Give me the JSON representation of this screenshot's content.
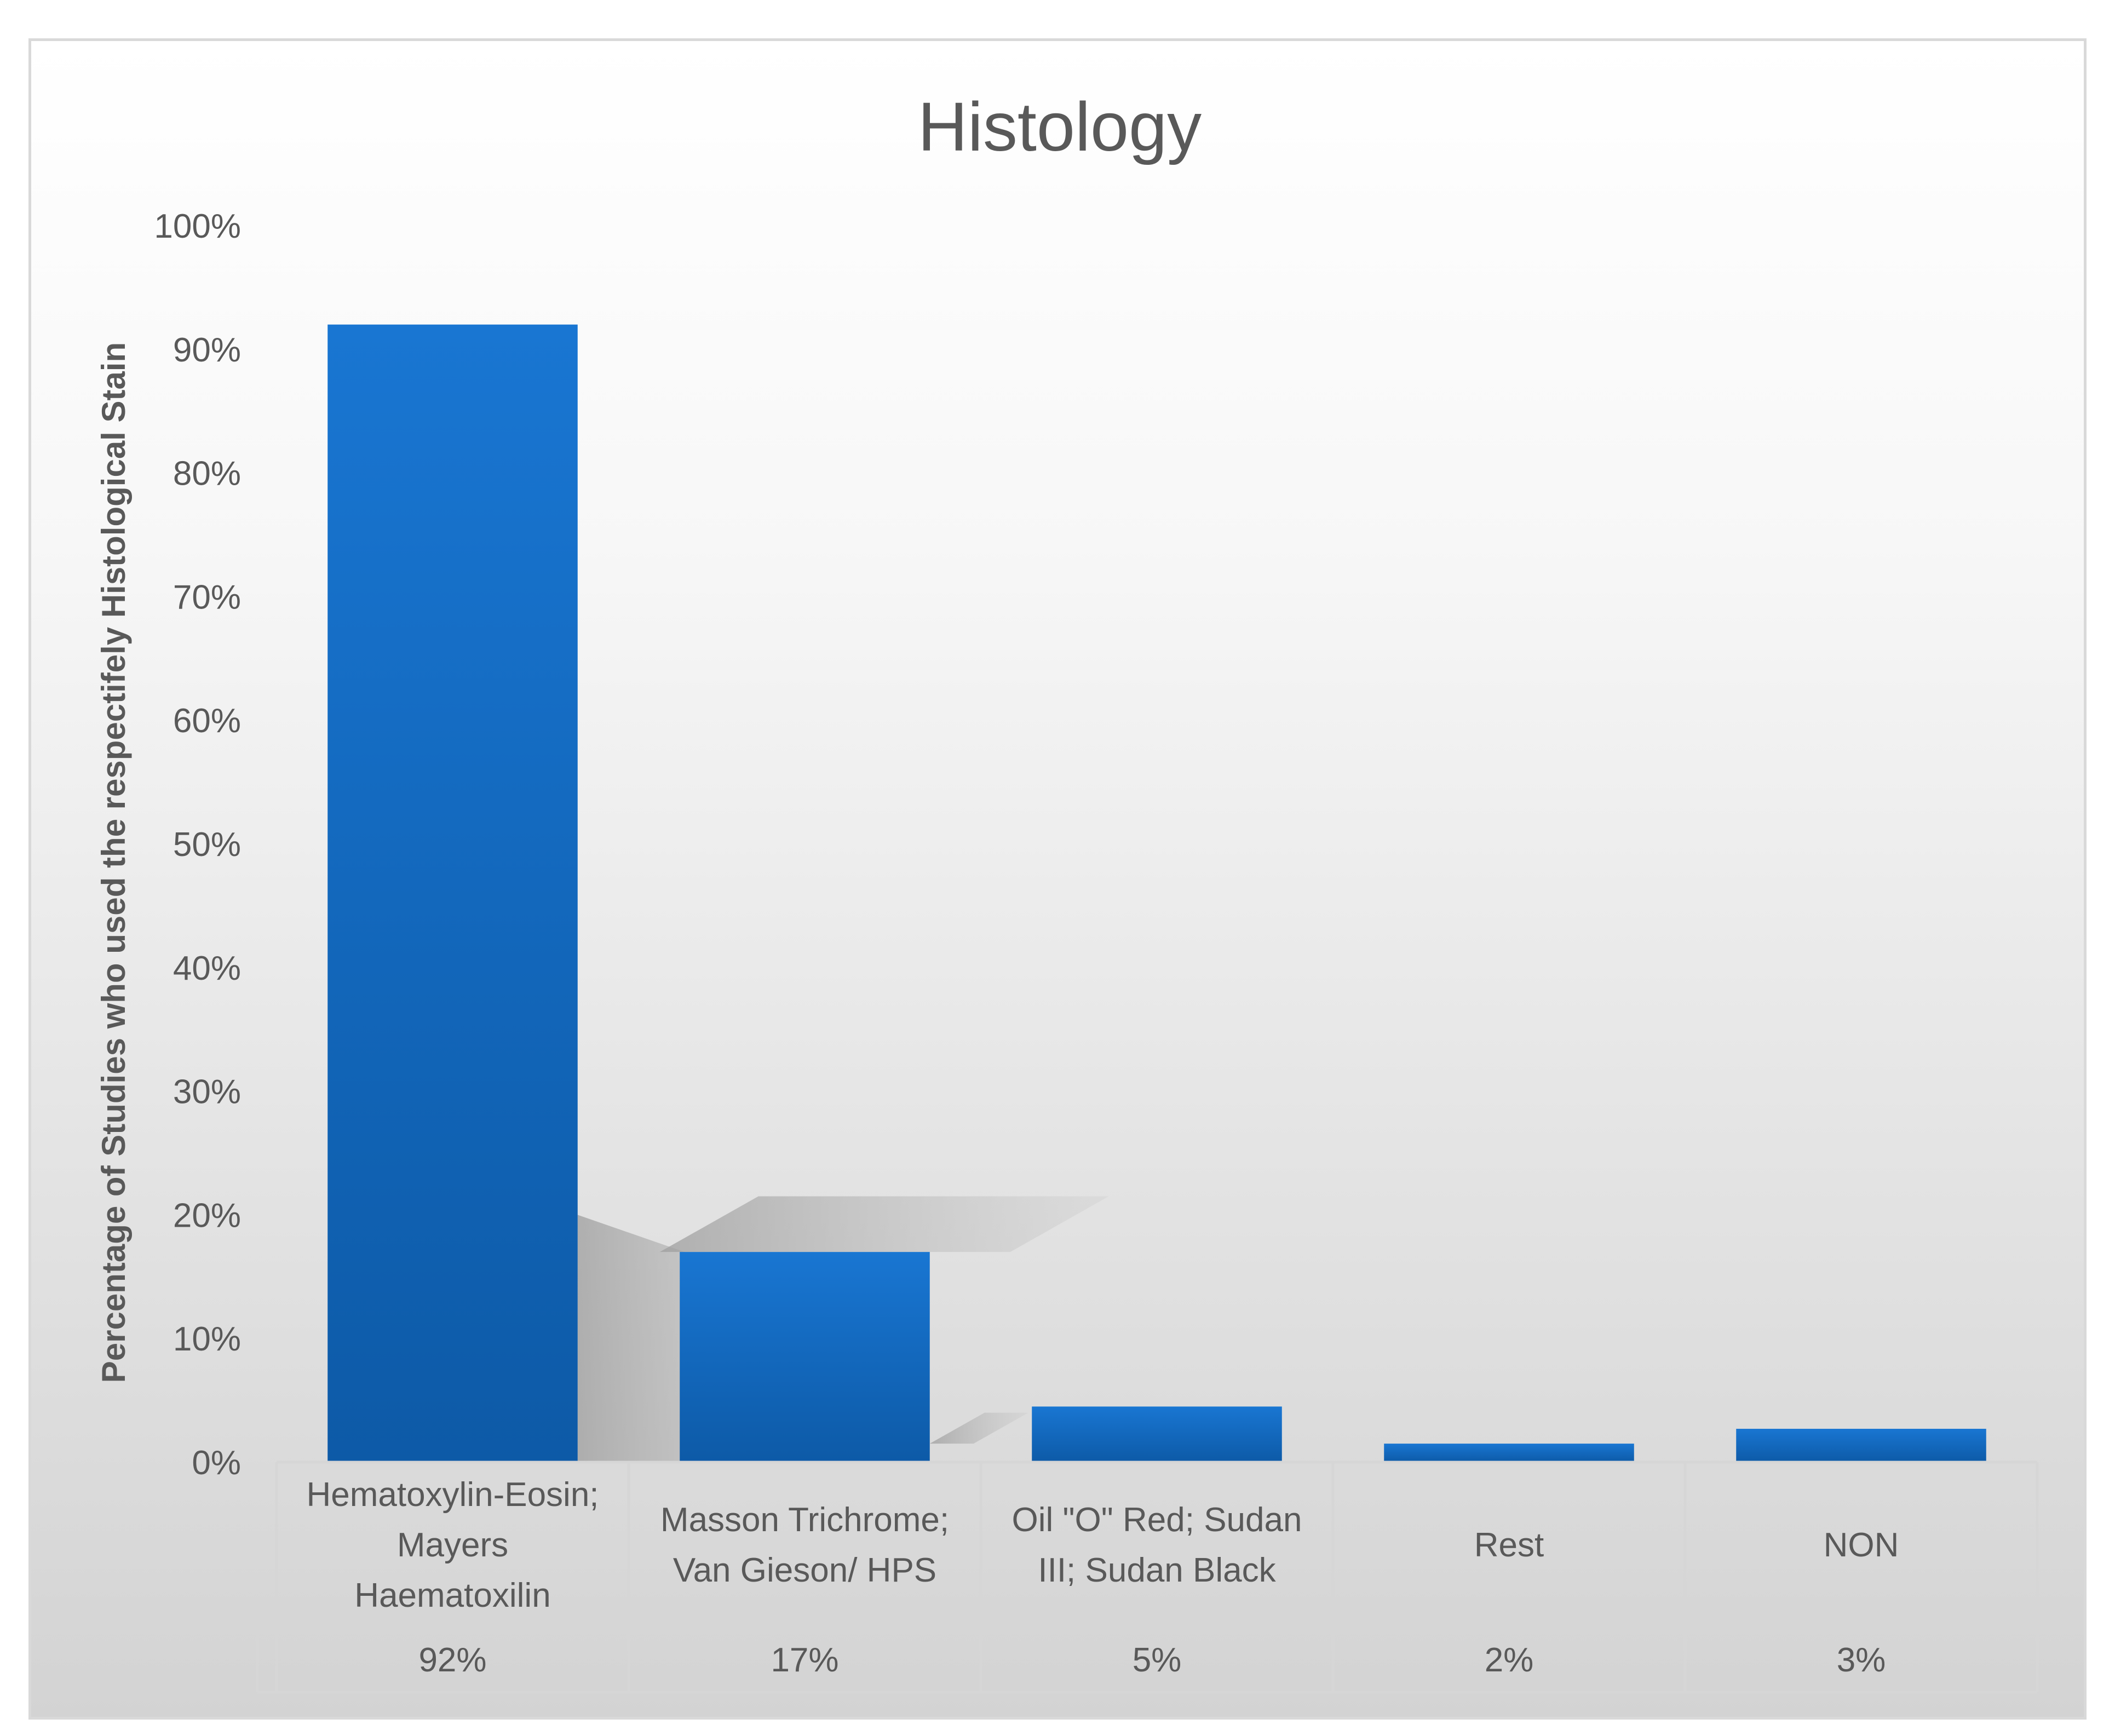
{
  "chart_data": {
    "type": "bar",
    "title": "Histology",
    "ylabel": "Percentage of Studies who used the respectifely Histological Stain",
    "xlabel": "",
    "ylim": [
      0,
      100
    ],
    "yticks": [
      "0%",
      "10%",
      "20%",
      "30%",
      "40%",
      "50%",
      "60%",
      "70%",
      "80%",
      "90%",
      "100%"
    ],
    "categories": [
      [
        "Hematoxylin-Eosin;",
        "Mayers",
        "Haematoxilin"
      ],
      [
        "Masson Trichrome;",
        "Van Gieson/ HPS"
      ],
      [
        "Oil \"O\" Red; Sudan",
        "III; Sudan Black"
      ],
      [
        "Rest"
      ],
      [
        "NON"
      ]
    ],
    "values": [
      92,
      17,
      4.5,
      1.5,
      2.7
    ],
    "value_labels": [
      "92%",
      "17%",
      "5%",
      "2%",
      "3%"
    ],
    "grid": false,
    "data_table": true,
    "bar_color": "#1565c0",
    "bar_color_light": "#1976d2"
  }
}
